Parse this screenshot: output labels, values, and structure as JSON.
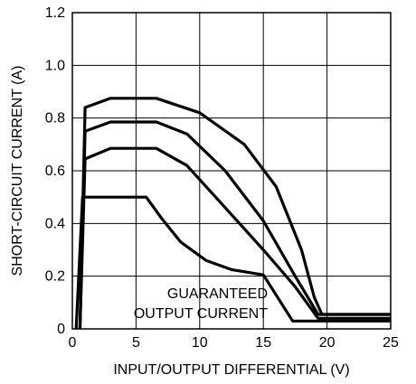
{
  "chart_data": {
    "type": "line",
    "xlabel": "INPUT/OUTPUT DIFFERENTIAL (V)",
    "ylabel": "SHORT-CIRCUIT CURRENT (A)",
    "xlim": [
      0,
      25
    ],
    "ylim": [
      0,
      1.2
    ],
    "xticks": [
      0,
      5,
      10,
      15,
      20,
      25
    ],
    "xtick_labels": [
      "0",
      "5",
      "10",
      "15",
      "20",
      "25"
    ],
    "yticks": [
      0,
      0.2,
      0.4,
      0.6,
      0.8,
      1.0,
      1.2
    ],
    "ytick_labels": [
      "0",
      "0.2",
      "0.4",
      "0.6",
      "0.8",
      "1.0",
      "1.2"
    ],
    "grid": true,
    "annotation": [
      "GUARANTEED",
      "OUTPUT CURRENT"
    ],
    "series": [
      {
        "values": [
          [
            0.6,
            0
          ],
          [
            1.0,
            0.84
          ],
          [
            3.0,
            0.875
          ],
          [
            6.6,
            0.875
          ],
          [
            10.0,
            0.82
          ],
          [
            13.5,
            0.7
          ],
          [
            16.0,
            0.54
          ],
          [
            18.0,
            0.3
          ],
          [
            19.0,
            0.12
          ],
          [
            19.6,
            0.055
          ],
          [
            25,
            0.055
          ]
        ]
      },
      {
        "values": [
          [
            0.6,
            0
          ],
          [
            1.0,
            0.75
          ],
          [
            3.0,
            0.785
          ],
          [
            6.6,
            0.785
          ],
          [
            9.0,
            0.74
          ],
          [
            12.0,
            0.6
          ],
          [
            15.0,
            0.41
          ],
          [
            17.5,
            0.2
          ],
          [
            19.3,
            0.055
          ],
          [
            25,
            0.055
          ]
        ]
      },
      {
        "values": [
          [
            0.6,
            0
          ],
          [
            1.0,
            0.645
          ],
          [
            3.0,
            0.685
          ],
          [
            6.6,
            0.685
          ],
          [
            9.0,
            0.62
          ],
          [
            12.0,
            0.46
          ],
          [
            15.0,
            0.3
          ],
          [
            17.5,
            0.16
          ],
          [
            19.3,
            0.04
          ],
          [
            25,
            0.04
          ]
        ]
      },
      {
        "values": [
          [
            0.3,
            0
          ],
          [
            0.8,
            0.5
          ],
          [
            5.8,
            0.5
          ],
          [
            7.0,
            0.42
          ],
          [
            8.5,
            0.33
          ],
          [
            10.5,
            0.26
          ],
          [
            12.5,
            0.225
          ],
          [
            15.0,
            0.205
          ],
          [
            17.3,
            0.03
          ],
          [
            25,
            0.03
          ]
        ]
      }
    ]
  }
}
